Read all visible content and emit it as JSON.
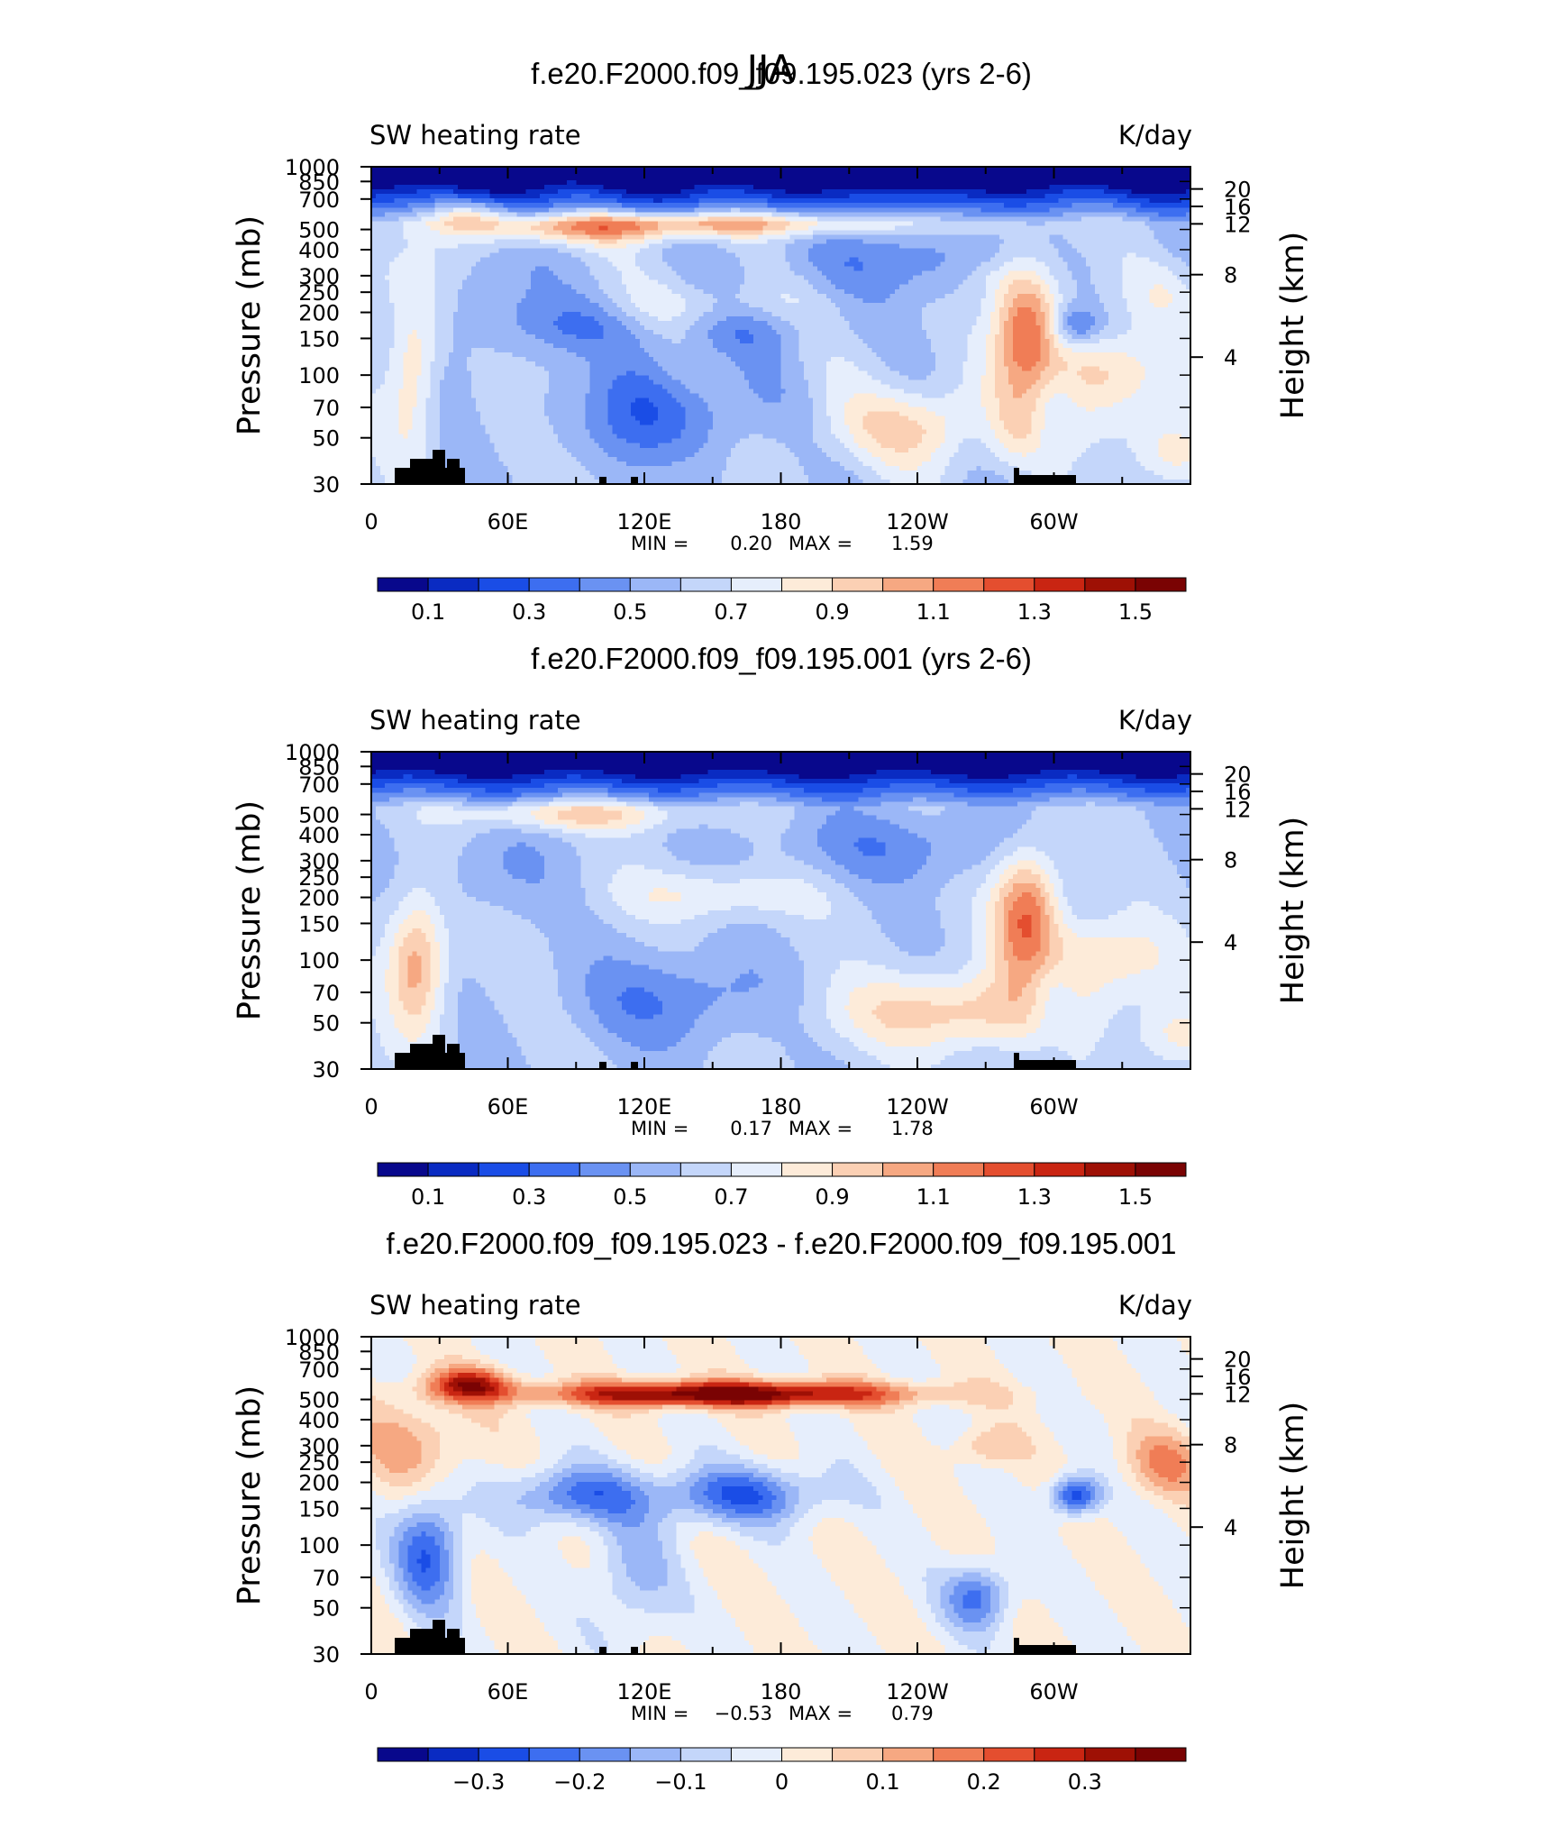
{
  "figure": {
    "title": "JJA"
  },
  "chart_data": [
    {
      "type": "heatmap",
      "title": "f.e20.F2000.f09_f09.195.023 (yrs 2-6)",
      "subtitle_left": "SW heating rate",
      "subtitle_right": "K/day",
      "ylabel": "Pressure (mb)",
      "ylabel_right": "Height (km)",
      "x_ticks": [
        "0",
        "60E",
        "120E",
        "180",
        "120W",
        "60W"
      ],
      "y_ticks": [
        "30",
        "50",
        "70",
        "100",
        "150",
        "200",
        "250",
        "300",
        "400",
        "500",
        "700",
        "850",
        "1000"
      ],
      "height_ticks": [
        "20",
        "16",
        "12",
        "8",
        "4"
      ],
      "stats": {
        "min_label": "MIN =",
        "min": "0.20",
        "max_label": "MAX =",
        "max": "1.59"
      },
      "colorbar": {
        "min": 0.0,
        "max": 1.6,
        "labels": [
          "0.1",
          "0.3",
          "0.5",
          "0.7",
          "0.9",
          "1.1",
          "1.3",
          "1.5"
        ]
      },
      "data_range": [
        0.2,
        1.59
      ]
    },
    {
      "type": "heatmap",
      "title": "f.e20.F2000.f09_f09.195.001 (yrs 2-6)",
      "subtitle_left": "SW heating rate",
      "subtitle_right": "K/day",
      "ylabel": "Pressure (mb)",
      "ylabel_right": "Height (km)",
      "x_ticks": [
        "0",
        "60E",
        "120E",
        "180",
        "120W",
        "60W"
      ],
      "y_ticks": [
        "30",
        "50",
        "70",
        "100",
        "150",
        "200",
        "250",
        "300",
        "400",
        "500",
        "700",
        "850",
        "1000"
      ],
      "height_ticks": [
        "20",
        "16",
        "12",
        "8",
        "4"
      ],
      "stats": {
        "min_label": "MIN =",
        "min": "0.17",
        "max_label": "MAX =",
        "max": "1.78"
      },
      "colorbar": {
        "min": 0.0,
        "max": 1.6,
        "labels": [
          "0.1",
          "0.3",
          "0.5",
          "0.7",
          "0.9",
          "1.1",
          "1.3",
          "1.5"
        ]
      },
      "data_range": [
        0.17,
        1.78
      ]
    },
    {
      "type": "heatmap",
      "title": "f.e20.F2000.f09_f09.195.023 - f.e20.F2000.f09_f09.195.001",
      "subtitle_left": "SW heating rate",
      "subtitle_right": "K/day",
      "ylabel": "Pressure (mb)",
      "ylabel_right": "Height (km)",
      "x_ticks": [
        "0",
        "60E",
        "120E",
        "180",
        "120W",
        "60W"
      ],
      "y_ticks": [
        "30",
        "50",
        "70",
        "100",
        "150",
        "200",
        "250",
        "300",
        "400",
        "500",
        "700",
        "850",
        "1000"
      ],
      "height_ticks": [
        "20",
        "16",
        "12",
        "8",
        "4"
      ],
      "stats": {
        "min_label": "MIN =",
        "min": "−0.53",
        "max_label": "MAX =",
        "max": "0.79"
      },
      "colorbar": {
        "min": -0.4,
        "max": 0.4,
        "labels": [
          "−0.3",
          "−0.2",
          "−0.1",
          "0",
          "0.1",
          "0.2",
          "0.3"
        ]
      },
      "data_range": [
        -0.53,
        0.79
      ]
    }
  ],
  "colors": {
    "palette": [
      "#08088c",
      "#0a2bc2",
      "#1a4de6",
      "#3d6ef0",
      "#6a92f2",
      "#9bb7f7",
      "#c4d6fa",
      "#e6eefc",
      "#fdebd9",
      "#fbd0b4",
      "#f6a882",
      "#f07d56",
      "#e44e2f",
      "#c92512",
      "#9e1005",
      "#7a0303"
    ],
    "mountain": "#000000"
  }
}
